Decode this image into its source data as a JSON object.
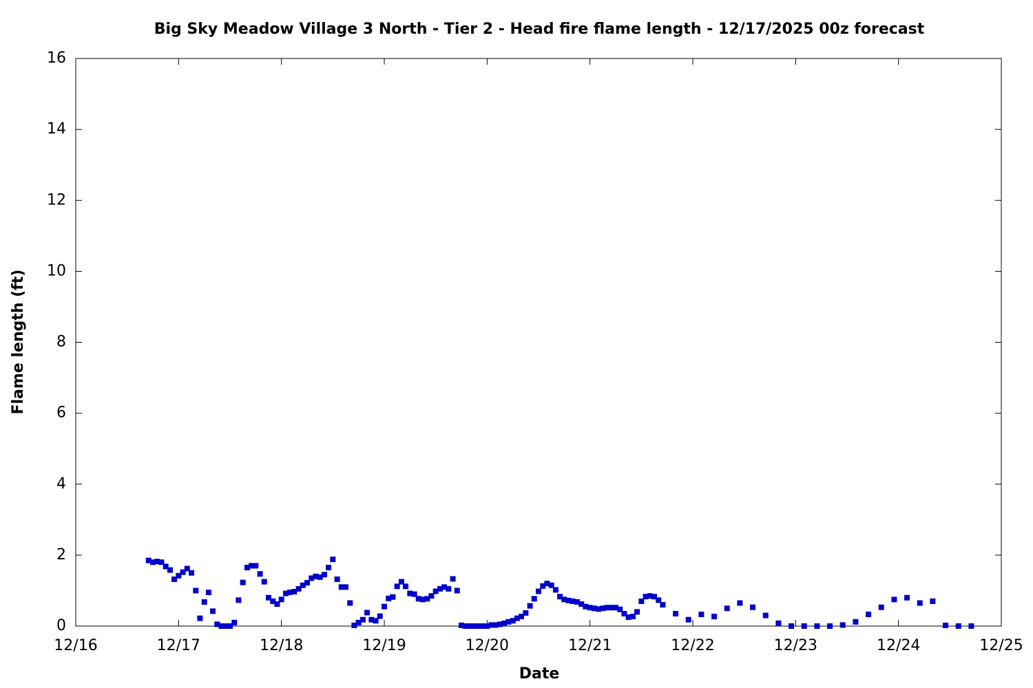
{
  "chart_data": {
    "type": "scatter",
    "title": "Big Sky Meadow Village 3 North - Tier 2 - Head fire flame length - 12/17/2025 00z forecast",
    "x_label": "Date",
    "y_label": "Flame length (ft)",
    "xlim": [
      16,
      25
    ],
    "xticks": [
      {
        "value": 16,
        "label": "12/16"
      },
      {
        "value": 17,
        "label": "12/17"
      },
      {
        "value": 18,
        "label": "12/18"
      },
      {
        "value": 19,
        "label": "12/19"
      },
      {
        "value": 20,
        "label": "12/20"
      },
      {
        "value": 21,
        "label": "12/21"
      },
      {
        "value": 22,
        "label": "12/22"
      },
      {
        "value": 23,
        "label": "12/23"
      },
      {
        "value": 24,
        "label": "12/24"
      },
      {
        "value": 25,
        "label": "12/25"
      }
    ],
    "ylim": [
      0,
      16
    ],
    "yticks": [
      0,
      2,
      4,
      6,
      8,
      10,
      12,
      14,
      16
    ],
    "grid": false,
    "series": [
      {
        "color": "#0000cc",
        "x": [
          16.708,
          16.75,
          16.792,
          16.833,
          16.875,
          16.917,
          16.958,
          17,
          17.042,
          17.083,
          17.125,
          17.167,
          17.208,
          17.25,
          17.292,
          17.333,
          17.375,
          17.417,
          17.458,
          17.5,
          17.542,
          17.583,
          17.625,
          17.667,
          17.708,
          17.75,
          17.792,
          17.833,
          17.875,
          17.917,
          17.958,
          18,
          18.042,
          18.083,
          18.125,
          18.167,
          18.208,
          18.25,
          18.292,
          18.333,
          18.375,
          18.417,
          18.458,
          18.5,
          18.542,
          18.583,
          18.625,
          18.667,
          18.708,
          18.75,
          18.792,
          18.833,
          18.875,
          18.917,
          18.958,
          19,
          19.042,
          19.083,
          19.125,
          19.167,
          19.208,
          19.25,
          19.292,
          19.333,
          19.375,
          19.417,
          19.458,
          19.5,
          19.542,
          19.583,
          19.625,
          19.667,
          19.708,
          19.75,
          19.792,
          19.833,
          19.875,
          19.917,
          19.958,
          20,
          20.042,
          20.083,
          20.125,
          20.167,
          20.208,
          20.25,
          20.292,
          20.333,
          20.375,
          20.417,
          20.458,
          20.5,
          20.542,
          20.583,
          20.625,
          20.667,
          20.708,
          20.75,
          20.792,
          20.833,
          20.875,
          20.917,
          20.958,
          21,
          21.042,
          21.083,
          21.125,
          21.167,
          21.208,
          21.25,
          21.292,
          21.333,
          21.375,
          21.417,
          21.458,
          21.5,
          21.542,
          21.583,
          21.625,
          21.667,
          21.708,
          21.833,
          21.958,
          22.083,
          22.208,
          22.333,
          22.458,
          22.583,
          22.708,
          22.833,
          22.958,
          23.083,
          23.208,
          23.333,
          23.458,
          23.583,
          23.708,
          23.833,
          23.958,
          24.083,
          24.208,
          24.333,
          24.458,
          24.583,
          24.708
        ],
        "values": [
          1.85,
          1.8,
          1.82,
          1.8,
          1.68,
          1.58,
          1.32,
          1.42,
          1.52,
          1.62,
          1.5,
          1.0,
          0.22,
          0.68,
          0.95,
          0.42,
          0.05,
          0,
          0,
          0,
          0.1,
          0.73,
          1.23,
          1.65,
          1.7,
          1.7,
          1.47,
          1.25,
          0.8,
          0.7,
          0.62,
          0.75,
          0.92,
          0.95,
          0.97,
          1.05,
          1.15,
          1.22,
          1.35,
          1.4,
          1.38,
          1.45,
          1.65,
          1.88,
          1.32,
          1.1,
          1.1,
          0.65,
          0.02,
          0.1,
          0.18,
          0.38,
          0.18,
          0.15,
          0.28,
          0.55,
          0.78,
          0.82,
          1.12,
          1.25,
          1.12,
          0.92,
          0.9,
          0.77,
          0.75,
          0.77,
          0.85,
          0.98,
          1.05,
          1.1,
          1.05,
          1.33,
          1.0,
          0.02,
          0,
          0,
          0,
          0,
          0,
          0,
          0.03,
          0.03,
          0.05,
          0.08,
          0.12,
          0.15,
          0.22,
          0.27,
          0.37,
          0.57,
          0.77,
          0.98,
          1.13,
          1.2,
          1.15,
          1.02,
          0.83,
          0.75,
          0.72,
          0.7,
          0.68,
          0.62,
          0.55,
          0.52,
          0.5,
          0.48,
          0.5,
          0.52,
          0.52,
          0.52,
          0.47,
          0.35,
          0.25,
          0.27,
          0.4,
          0.7,
          0.83,
          0.85,
          0.83,
          0.73,
          0.6,
          0.35,
          0.18,
          0.33,
          0.27,
          0.5,
          0.65,
          0.53,
          0.3,
          0.08,
          0,
          0,
          0,
          0,
          0.03,
          0.12,
          0.33,
          0.53,
          0.75,
          0.8,
          0.65,
          0.7,
          0.02,
          0,
          0
        ]
      }
    ]
  }
}
